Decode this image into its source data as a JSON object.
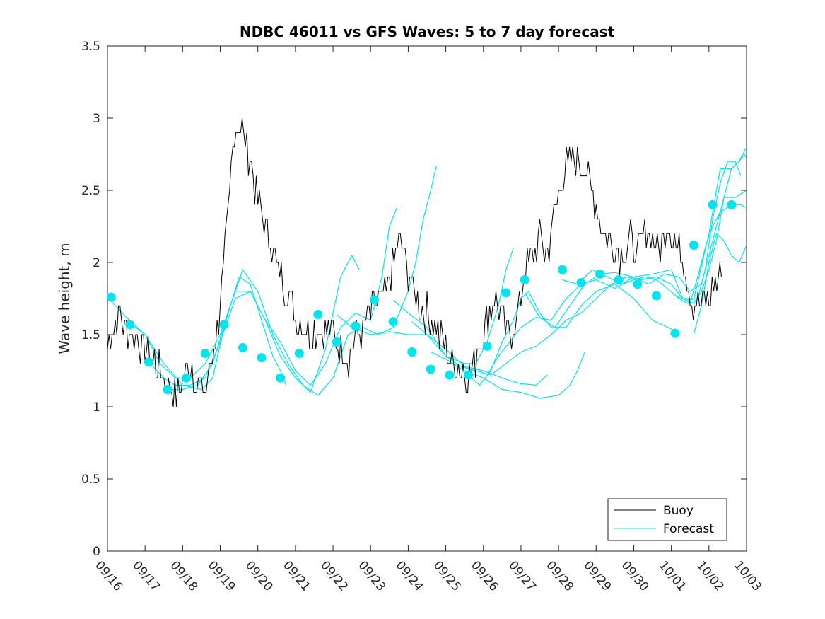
{
  "chart_data": {
    "type": "line",
    "title": "NDBC 46011 vs GFS Waves: 5 to 7 day forecast",
    "xlabel": "",
    "ylabel": "Wave height, m",
    "xlim": [
      0,
      17
    ],
    "ylim": [
      0,
      3.5
    ],
    "x_tick_labels": [
      "09/16",
      "09/17",
      "09/18",
      "09/19",
      "09/20",
      "09/21",
      "09/22",
      "09/23",
      "09/24",
      "09/25",
      "09/26",
      "09/27",
      "09/28",
      "09/29",
      "09/30",
      "10/01",
      "10/02",
      "10/03"
    ],
    "y_ticks": [
      0,
      0.5,
      1,
      1.5,
      2,
      2.5,
      3,
      3.5
    ],
    "y_tick_labels": [
      "0",
      "0.5",
      "1",
      "1.5",
      "2",
      "2.5",
      "3",
      "3.5"
    ],
    "legend": {
      "position": "bottom-right",
      "entries": [
        "Buoy",
        "Forecast"
      ]
    },
    "colors": {
      "buoy": "#000000",
      "forecast": "#00e5ee",
      "marker": "#00e5ee",
      "axis": "#262626"
    },
    "buoy_anchors": {
      "x": [
        0,
        0.15,
        0.3,
        0.5,
        0.7,
        0.9,
        1.1,
        1.3,
        1.5,
        1.65,
        1.8,
        2.0,
        2.2,
        2.4,
        2.6,
        2.75,
        2.9,
        3.05,
        3.2,
        3.35,
        3.5,
        3.7,
        3.9,
        4.1,
        4.3,
        4.5,
        4.7,
        4.85,
        5.0,
        5.2,
        5.4,
        5.6,
        5.8,
        6.0,
        6.2,
        6.4,
        6.6,
        6.8,
        7.0,
        7.2,
        7.4,
        7.6,
        7.75,
        7.9,
        8.1,
        8.3,
        8.5,
        8.7,
        8.9,
        9.1,
        9.3,
        9.5,
        9.7,
        9.9,
        10.1,
        10.3,
        10.5,
        10.7,
        10.9,
        11.1,
        11.3,
        11.5,
        11.7,
        11.9,
        12.1,
        12.3,
        12.5,
        12.7,
        12.9,
        13.1,
        13.3,
        13.5,
        13.7,
        13.9,
        14.1,
        14.3,
        14.5,
        14.7,
        14.9,
        15.1,
        15.3,
        15.5,
        15.65,
        15.8,
        16.0,
        16.2,
        16.35
      ],
      "y": [
        1.45,
        1.55,
        1.65,
        1.55,
        1.5,
        1.45,
        1.35,
        1.3,
        1.2,
        1.1,
        1.1,
        1.15,
        1.3,
        1.15,
        1.1,
        1.3,
        1.5,
        1.85,
        2.25,
        2.85,
        3.0,
        2.8,
        2.55,
        2.35,
        2.2,
        2.0,
        1.8,
        1.75,
        1.6,
        1.55,
        1.5,
        1.55,
        1.55,
        1.5,
        1.4,
        1.35,
        1.45,
        1.55,
        1.65,
        1.7,
        1.8,
        1.95,
        2.15,
        2.05,
        1.85,
        1.7,
        1.65,
        1.55,
        1.45,
        1.35,
        1.3,
        1.25,
        1.25,
        1.45,
        1.6,
        1.75,
        1.6,
        1.5,
        1.6,
        1.95,
        2.05,
        2.15,
        2.05,
        2.35,
        2.6,
        2.7,
        2.75,
        2.65,
        2.5,
        2.3,
        2.15,
        2.1,
        2.05,
        2.15,
        2.05,
        2.25,
        2.2,
        2.1,
        2.25,
        2.15,
        2.05,
        1.8,
        1.7,
        1.7,
        1.75,
        1.85,
        2.0
      ],
      "spread": 0.12
    },
    "forecast_series": [
      {
        "name": "Forecast",
        "x": [
          0,
          0.5,
          1.0,
          1.5,
          2.0,
          2.5,
          2.8,
          3.1,
          3.5,
          3.8,
          4.1,
          4.4,
          4.6,
          4.75
        ],
        "y": [
          1.76,
          1.62,
          1.5,
          1.3,
          1.15,
          1.12,
          1.2,
          1.55,
          1.9,
          1.85,
          1.6,
          1.35,
          1.25,
          1.15
        ]
      },
      {
        "name": "Forecast",
        "x": [
          0.6,
          1.0,
          1.4,
          1.8,
          2.2,
          2.6,
          3.0,
          3.4,
          3.8,
          4.2,
          4.6,
          5.0,
          5.4,
          5.8,
          6.2,
          6.5,
          6.7
        ],
        "y": [
          1.58,
          1.5,
          1.3,
          1.2,
          1.2,
          1.3,
          1.5,
          1.8,
          1.8,
          1.6,
          1.35,
          1.2,
          1.1,
          1.4,
          1.9,
          2.05,
          1.95
        ]
      },
      {
        "name": "Forecast",
        "x": [
          1.1,
          1.5,
          1.8,
          2.2,
          2.6,
          3.0,
          3.4,
          3.8,
          4.2,
          4.6,
          5.0,
          5.4,
          5.8,
          6.2,
          6.6,
          7.0,
          7.3,
          7.5,
          7.7
        ],
        "y": [
          1.31,
          1.2,
          1.15,
          1.15,
          1.2,
          1.45,
          1.75,
          1.8,
          1.6,
          1.45,
          1.25,
          1.15,
          1.3,
          1.55,
          1.65,
          1.6,
          1.9,
          2.25,
          2.38
        ]
      },
      {
        "name": "Forecast",
        "x": [
          1.6,
          2.0,
          2.4,
          2.8,
          3.2,
          3.6,
          4.0,
          4.4,
          4.8,
          5.2,
          5.6,
          6.0,
          6.4,
          6.8,
          7.2,
          7.6,
          8.0,
          8.2,
          8.4,
          8.6,
          8.75
        ],
        "y": [
          1.12,
          1.12,
          1.15,
          1.3,
          1.65,
          1.95,
          1.8,
          1.5,
          1.3,
          1.15,
          1.08,
          1.2,
          1.5,
          1.55,
          1.5,
          1.55,
          1.8,
          2.0,
          2.3,
          2.5,
          2.67
        ]
      },
      {
        "name": "Forecast",
        "x": [
          6.1,
          6.5,
          7.0,
          7.5,
          8.0,
          8.5,
          9.0,
          9.5,
          9.8,
          10.1,
          10.4,
          10.6,
          10.8
        ],
        "y": [
          1.64,
          1.55,
          1.5,
          1.52,
          1.5,
          1.5,
          1.35,
          1.3,
          1.3,
          1.45,
          1.7,
          1.95,
          2.1
        ]
      },
      {
        "name": "Forecast",
        "x": [
          7.6,
          8.0,
          8.5,
          9.0,
          9.4,
          9.8,
          10.2,
          10.6,
          11.0,
          11.4,
          11.8,
          12.2,
          12.6,
          13.0,
          13.4,
          13.8,
          14.2,
          14.6,
          15.0,
          15.3,
          15.5,
          15.7,
          15.9,
          16.1,
          16.3,
          16.6,
          16.85,
          17.0
        ],
        "y": [
          1.74,
          1.65,
          1.55,
          1.35,
          1.28,
          1.25,
          1.22,
          1.3,
          1.38,
          1.42,
          1.5,
          1.6,
          1.65,
          1.75,
          1.85,
          1.9,
          1.88,
          1.9,
          1.85,
          1.75,
          1.72,
          1.9,
          2.1,
          2.25,
          2.35,
          2.4,
          2.4,
          2.38
        ]
      },
      {
        "name": "Forecast",
        "x": [
          8.1,
          8.5,
          9.0,
          9.5,
          10.0,
          10.5,
          11.0,
          11.4,
          11.7
        ],
        "y": [
          1.59,
          1.5,
          1.4,
          1.28,
          1.25,
          1.2,
          1.16,
          1.15,
          1.22
        ]
      },
      {
        "name": "Forecast",
        "x": [
          8.6,
          9.0,
          9.5,
          10.0,
          10.5,
          11.0,
          11.5,
          12.0,
          12.3,
          12.5,
          12.7
        ],
        "y": [
          1.38,
          1.33,
          1.25,
          1.2,
          1.12,
          1.1,
          1.06,
          1.08,
          1.15,
          1.25,
          1.38
        ]
      },
      {
        "name": "Forecast",
        "x": [
          9.6,
          9.9,
          10.2,
          10.5,
          10.8,
          11.0,
          11.2,
          11.5,
          11.8,
          12.2,
          12.6,
          13.0,
          13.5,
          14.0,
          14.5,
          15.0
        ],
        "y": [
          1.22,
          1.15,
          1.25,
          1.45,
          1.6,
          1.75,
          1.8,
          1.65,
          1.55,
          1.55,
          1.7,
          1.8,
          1.85,
          1.75,
          1.6,
          1.54
        ]
      },
      {
        "name": "Forecast",
        "x": [
          10.1,
          10.4,
          10.7,
          11.0,
          11.4,
          11.8,
          12.2,
          12.6,
          13.0,
          13.5,
          14.0,
          14.5,
          15.0,
          15.3,
          15.6,
          16.0,
          16.3,
          16.6,
          16.8,
          17.0
        ],
        "y": [
          1.22,
          1.35,
          1.45,
          1.55,
          1.62,
          1.6,
          1.75,
          1.85,
          1.88,
          1.82,
          1.9,
          1.92,
          1.95,
          1.75,
          1.75,
          2.2,
          2.65,
          2.65,
          2.7,
          2.8
        ]
      },
      {
        "name": "Forecast",
        "x": [
          11.1,
          11.5,
          11.9,
          12.3,
          12.7,
          13.1,
          13.5,
          14.0,
          14.4,
          14.8,
          15.2,
          15.5,
          15.8,
          16.1,
          16.4,
          16.7,
          17.0
        ],
        "y": [
          1.79,
          1.62,
          1.55,
          1.7,
          1.85,
          1.92,
          1.93,
          1.9,
          1.85,
          1.92,
          1.9,
          1.8,
          1.85,
          2.15,
          2.45,
          2.45,
          2.5
        ]
      },
      {
        "name": "Forecast",
        "x": [
          12.1,
          12.5,
          12.9,
          13.3,
          13.7,
          14.0,
          14.3,
          14.6,
          14.9,
          15.2,
          15.4,
          15.6,
          15.8,
          16.0,
          16.2,
          16.4,
          16.6,
          16.8,
          16.95,
          17.0
        ],
        "y": [
          1.88,
          1.85,
          1.95,
          1.9,
          1.85,
          1.88,
          1.9,
          1.88,
          1.82,
          1.75,
          1.72,
          1.72,
          1.8,
          1.95,
          2.15,
          2.45,
          2.65,
          2.7,
          2.75,
          2.72
        ]
      },
      {
        "name": "Forecast",
        "x": [
          15.6,
          15.8,
          16.0,
          16.2,
          16.4,
          16.6,
          16.8,
          17.0
        ],
        "y": [
          1.51,
          1.7,
          2.0,
          2.2,
          2.15,
          2.05,
          2.0,
          2.12
        ]
      },
      {
        "name": "Forecast",
        "x": [
          15.1,
          15.4,
          15.7,
          15.9,
          16.1,
          16.3,
          16.5,
          16.7,
          16.85
        ],
        "y": [
          1.77,
          1.74,
          1.75,
          1.95,
          2.3,
          2.55,
          2.7,
          2.7,
          2.6
        ]
      }
    ],
    "forecast_markers": {
      "x": [
        0.1,
        0.6,
        1.1,
        1.6,
        2.1,
        2.6,
        3.1,
        3.6,
        4.1,
        4.6,
        5.1,
        5.6,
        6.1,
        6.6,
        7.1,
        7.6,
        8.1,
        8.6,
        9.1,
        9.6,
        10.1,
        10.6,
        11.1,
        12.1,
        12.6,
        13.1,
        13.6,
        14.1,
        14.6,
        15.1,
        15.6,
        16.1,
        16.6
      ],
      "y": [
        1.76,
        1.57,
        1.31,
        1.12,
        1.2,
        1.37,
        1.57,
        1.41,
        1.34,
        1.2,
        1.37,
        1.64,
        1.45,
        1.56,
        1.74,
        1.59,
        1.38,
        1.26,
        1.22,
        1.22,
        1.42,
        1.79,
        1.88,
        1.95,
        1.86,
        1.92,
        1.88,
        1.85,
        1.77,
        1.51,
        2.12,
        2.4,
        2.4
      ]
    }
  }
}
